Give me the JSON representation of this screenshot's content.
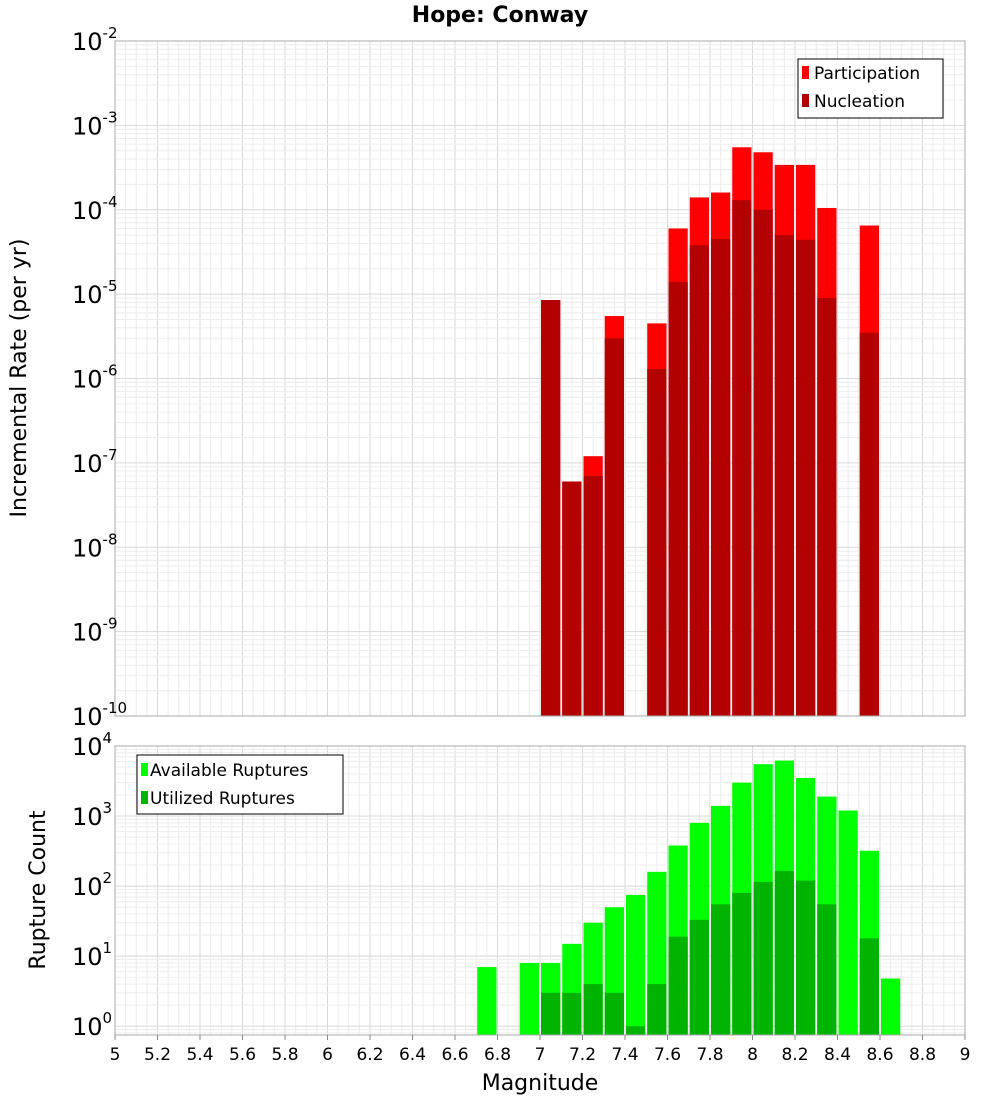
{
  "chart_data": [
    {
      "type": "bar",
      "title": "Hope: Conway",
      "xlabel": "",
      "ylabel": "Incremental Rate (per yr)",
      "xlim": [
        5,
        9
      ],
      "ylim": [
        1e-10,
        0.01
      ],
      "yscale": "log",
      "bar_width": 0.1,
      "grid": true,
      "legend_position": "top-right",
      "x": [
        7.05,
        7.15,
        7.25,
        7.35,
        7.45,
        7.55,
        7.65,
        7.75,
        7.85,
        7.95,
        8.05,
        8.15,
        8.25,
        8.35,
        8.45,
        8.55
      ],
      "series": [
        {
          "name": "Participation",
          "color": "#ff0000",
          "values": [
            8.5e-06,
            6e-08,
            1.2e-07,
            5.5e-06,
            null,
            4.5e-06,
            6e-05,
            0.00014,
            0.00016,
            0.00055,
            0.00048,
            0.00034,
            0.00034,
            0.000105,
            null,
            6.5e-05
          ]
        },
        {
          "name": "Nucleation",
          "color": "#b30000",
          "values": [
            8.5e-06,
            6e-08,
            7e-08,
            3e-06,
            null,
            1.3e-06,
            1.4e-05,
            3.8e-05,
            4.5e-05,
            0.00013,
            0.0001,
            5e-05,
            4.4e-05,
            9e-06,
            null,
            3.5e-06
          ]
        }
      ]
    },
    {
      "type": "bar",
      "title": "",
      "xlabel": "Magnitude",
      "ylabel": "Rupture Count",
      "xlim": [
        5,
        9
      ],
      "ylim": [
        0.75,
        10000
      ],
      "yscale": "log",
      "bar_width": 0.1,
      "grid": true,
      "legend_position": "top-left",
      "x": [
        6.75,
        6.85,
        6.95,
        7.05,
        7.15,
        7.25,
        7.35,
        7.45,
        7.55,
        7.65,
        7.75,
        7.85,
        7.95,
        8.05,
        8.15,
        8.25,
        8.35,
        8.45,
        8.55,
        8.65
      ],
      "series": [
        {
          "name": "Available Ruptures",
          "color": "#00ff00",
          "values": [
            7,
            null,
            8,
            8,
            15,
            30,
            50,
            75,
            160,
            380,
            800,
            1400,
            3000,
            5500,
            6200,
            3500,
            1900,
            1200,
            320,
            4.8
          ]
        },
        {
          "name": "Utilized Ruptures",
          "color": "#00b300",
          "values": [
            null,
            null,
            null,
            3,
            3,
            4,
            3,
            1,
            4,
            19,
            33,
            55,
            80,
            115,
            165,
            120,
            55,
            null,
            18,
            null
          ]
        }
      ]
    }
  ],
  "x_tick_labels": [
    "5",
    "5.2",
    "5.4",
    "5.6",
    "5.8",
    "6",
    "6.2",
    "6.4",
    "6.6",
    "6.8",
    "7",
    "7.2",
    "7.4",
    "7.6",
    "7.8",
    "8",
    "8.2",
    "8.4",
    "8.6",
    "8.8",
    "9"
  ],
  "top_y_ticks": [
    {
      "base": "10",
      "exp": "-2"
    },
    {
      "base": "10",
      "exp": "-3"
    },
    {
      "base": "10",
      "exp": "-4"
    },
    {
      "base": "10",
      "exp": "-5"
    },
    {
      "base": "10",
      "exp": "-6"
    },
    {
      "base": "10",
      "exp": "-7"
    },
    {
      "base": "10",
      "exp": "-8"
    },
    {
      "base": "10",
      "exp": "-9"
    },
    {
      "base": "10",
      "exp": "-10"
    }
  ],
  "bottom_y_ticks": [
    {
      "base": "10",
      "exp": "4"
    },
    {
      "base": "10",
      "exp": "3"
    },
    {
      "base": "10",
      "exp": "2"
    },
    {
      "base": "10",
      "exp": "1"
    },
    {
      "base": "10",
      "exp": "0"
    }
  ]
}
